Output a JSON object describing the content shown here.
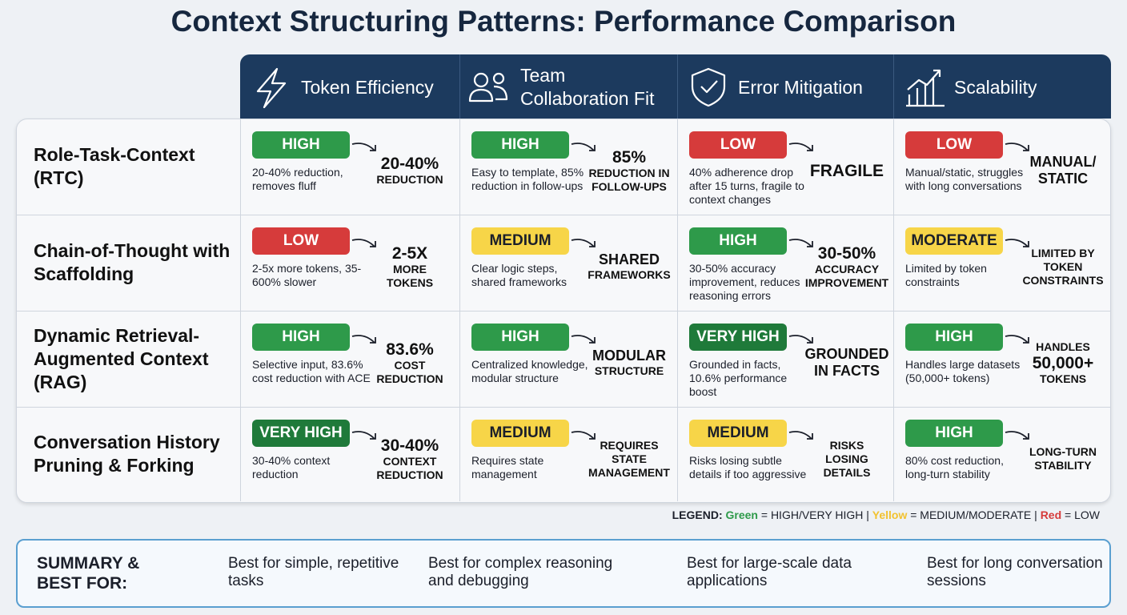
{
  "title": "Context Structuring Patterns: Performance Comparison",
  "table": {
    "columns": [
      "Token Efficiency",
      "Team Collaboration Fit",
      "Error Mitigation",
      "Scalability"
    ],
    "rows": [
      {
        "label": "Role-Task-Context (RTC)",
        "cells": [
          {
            "rating": "HIGH",
            "color": "#2e9a4a",
            "description": "20-40% reduction, removes fluff",
            "highlight": [
              "20-40%",
              "REDUCTION"
            ]
          },
          {
            "rating": "HIGH",
            "color": "#2e9a4a",
            "description": "Easy to template, 85% reduction in follow-ups",
            "highlight": [
              "85%",
              "REDUCTION IN",
              "FOLLOW-UPS"
            ]
          },
          {
            "rating": "LOW",
            "color": "#d63b3b",
            "description": "40% adherence drop after 15 turns, fragile to context changes",
            "highlight": [
              "FRAGILE"
            ]
          },
          {
            "rating": "LOW",
            "color": "#d63b3b",
            "description": "Manual/static, struggles with long conversations",
            "highlight": [
              "MANUAL/",
              "STATIC"
            ]
          }
        ]
      },
      {
        "label": "Chain-of-Thought with Scaffolding",
        "cells": [
          {
            "rating": "LOW",
            "color": "#d63b3b",
            "description": "2-5x more tokens, 35-600% slower",
            "highlight": [
              "2-5X",
              "MORE",
              "TOKENS"
            ]
          },
          {
            "rating": "MEDIUM",
            "color": "#f7d548",
            "description": "Clear logic steps, shared frameworks",
            "highlight": [
              "SHARED",
              "FRAMEWORKS"
            ]
          },
          {
            "rating": "HIGH",
            "color": "#2e9a4a",
            "description": "30-50% accuracy improvement, reduces reasoning errors",
            "highlight": [
              "30-50%",
              "ACCURACY",
              "IMPROVEMENT"
            ]
          },
          {
            "rating": "MODERATE",
            "color": "#f7d548",
            "description": "Limited by token constraints",
            "highlight": [
              "LIMITED BY",
              "TOKEN",
              "CONSTRAINTS"
            ]
          }
        ]
      },
      {
        "label": "Dynamic Retrieval-Augmented Context (RAG)",
        "cells": [
          {
            "rating": "HIGH",
            "color": "#2e9a4a",
            "description": "Selective input, 83.6% cost reduction with ACE",
            "highlight": [
              "83.6%",
              "COST",
              "REDUCTION"
            ]
          },
          {
            "rating": "HIGH",
            "color": "#2e9a4a",
            "description": "Centralized knowledge, modular structure",
            "highlight": [
              "MODULAR",
              "STRUCTURE"
            ]
          },
          {
            "rating": "VERY HIGH",
            "color": "#1f7a3a",
            "description": "Grounded in facts, 10.6% performance boost",
            "highlight": [
              "GROUNDED",
              "IN FACTS"
            ]
          },
          {
            "rating": "HIGH",
            "color": "#2e9a4a",
            "description": "Handles large datasets (50,000+ tokens)",
            "highlight": [
              "HANDLES",
              "50,000+",
              "TOKENS"
            ]
          }
        ]
      },
      {
        "label": "Conversation History Pruning & Forking",
        "cells": [
          {
            "rating": "VERY HIGH",
            "color": "#1f7a3a",
            "description": "30-40% context reduction",
            "highlight": [
              "30-40%",
              "CONTEXT",
              "REDUCTION"
            ]
          },
          {
            "rating": "MEDIUM",
            "color": "#f7d548",
            "description": "Requires state management",
            "highlight": [
              "REQUIRES",
              "STATE",
              "MANAGEMENT"
            ]
          },
          {
            "rating": "MEDIUM",
            "color": "#f7d548",
            "description": "Risks losing subtle details if too aggressive",
            "highlight": [
              "RISKS",
              "LOSING",
              "DETAILS"
            ]
          },
          {
            "rating": "HIGH",
            "color": "#2e9a4a",
            "description": "80% cost reduction, long-turn stability",
            "highlight": [
              "LONG-TURN",
              "STABILITY"
            ]
          }
        ]
      }
    ]
  },
  "legend": {
    "title": "LEGEND:",
    "separator": "|",
    "items": [
      {
        "color_name": "Green",
        "color": "#2e9a4a",
        "meaning": "= HIGH/VERY HIGH"
      },
      {
        "color_name": "Yellow",
        "color": "#f2c230",
        "meaning": "= MEDIUM/MODERATE"
      },
      {
        "color_name": "Red",
        "color": "#d63b3b",
        "meaning": "= LOW"
      }
    ]
  },
  "summary": {
    "label": "SUMMARY & BEST FOR:",
    "items": [
      "Best for simple, repetitive tasks",
      "Best for complex reasoning and debugging",
      "Best for large-scale data applications",
      "Best for long conversation sessions"
    ]
  }
}
